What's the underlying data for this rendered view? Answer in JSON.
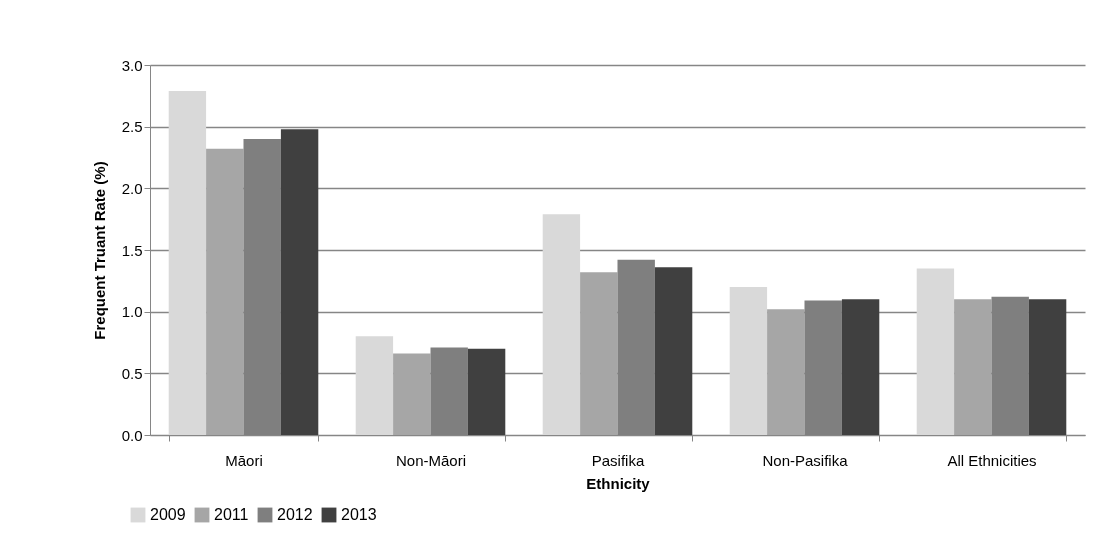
{
  "chart_data": {
    "type": "bar",
    "xlabel": "Ethnicity",
    "ylabel": "Frequent Truant Rate (%)",
    "categories": [
      "Māori",
      "Non-Māori",
      "Pasifika",
      "Non-Pasifika",
      "All Ethnicities"
    ],
    "series": [
      {
        "name": "2009",
        "color": "#d9d9d9",
        "values": [
          2.79,
          0.8,
          1.79,
          1.2,
          1.35
        ]
      },
      {
        "name": "2011",
        "color": "#a6a6a6",
        "values": [
          2.32,
          0.66,
          1.32,
          1.02,
          1.1
        ]
      },
      {
        "name": "2012",
        "color": "#7f7f7f",
        "values": [
          2.4,
          0.71,
          1.42,
          1.09,
          1.12
        ]
      },
      {
        "name": "2013",
        "color": "#404040",
        "values": [
          2.48,
          0.7,
          1.36,
          1.1,
          1.1
        ]
      }
    ],
    "ylim": [
      0,
      3
    ],
    "yticks": [
      {
        "value": 0,
        "label": "0.0"
      },
      {
        "value": 0.5,
        "label": "0.5"
      },
      {
        "value": 1,
        "label": "1.0"
      },
      {
        "value": 1.5,
        "label": "1.5"
      },
      {
        "value": 2,
        "label": "2.0"
      },
      {
        "value": 2.5,
        "label": "2.5"
      },
      {
        "value": 3,
        "label": "3.0"
      }
    ],
    "grid": "y",
    "legend": "bottom left"
  }
}
